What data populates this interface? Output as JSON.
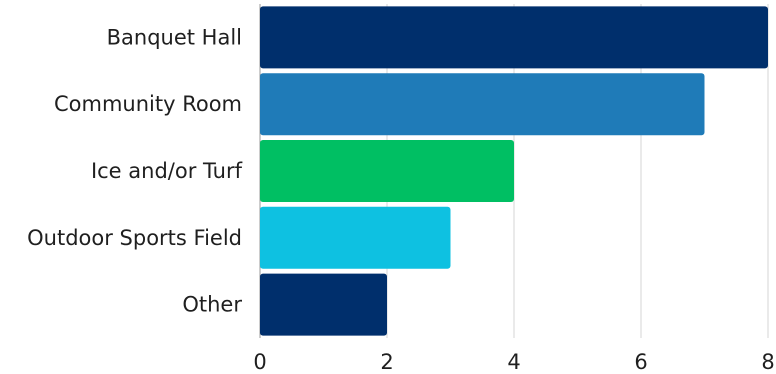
{
  "chart_data": {
    "type": "bar",
    "orientation": "horizontal",
    "title": "",
    "xlabel": "",
    "ylabel": "",
    "categories": [
      "Banquet Hall",
      "Community Room",
      "Ice and/or Turf",
      "Outdoor Sports Field",
      "Other"
    ],
    "values": [
      8,
      7,
      4,
      3,
      2
    ],
    "bar_colors": [
      "#002F6C",
      "#1F7BB8",
      "#00BF63",
      "#0EC1E1",
      "#002F6C"
    ],
    "xlim": [
      0,
      8
    ],
    "xticks": [
      0,
      2,
      4,
      6,
      8
    ],
    "grid": true,
    "legend": "none"
  }
}
